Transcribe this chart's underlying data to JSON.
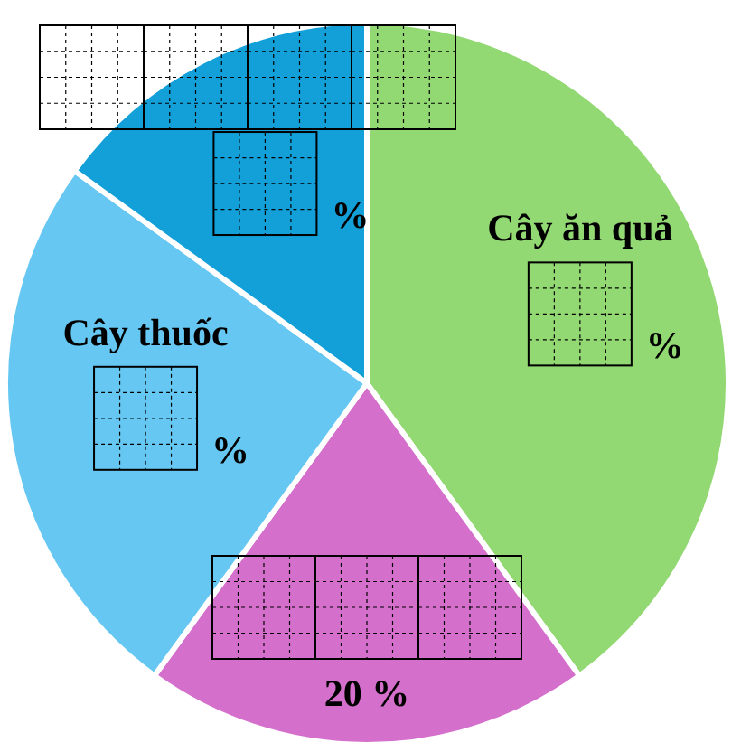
{
  "chart_data": {
    "type": "pie",
    "categories": [
      "Cây ăn quả",
      null,
      "Cây thuốc",
      null
    ],
    "values": [
      40,
      20,
      25,
      15
    ],
    "colors": [
      "#92d873",
      "#d46fcc",
      "#66c8f2",
      "#139fd8"
    ],
    "value_labels": [
      "%",
      "20 %",
      "%",
      "%"
    ],
    "legend": false
  }
}
